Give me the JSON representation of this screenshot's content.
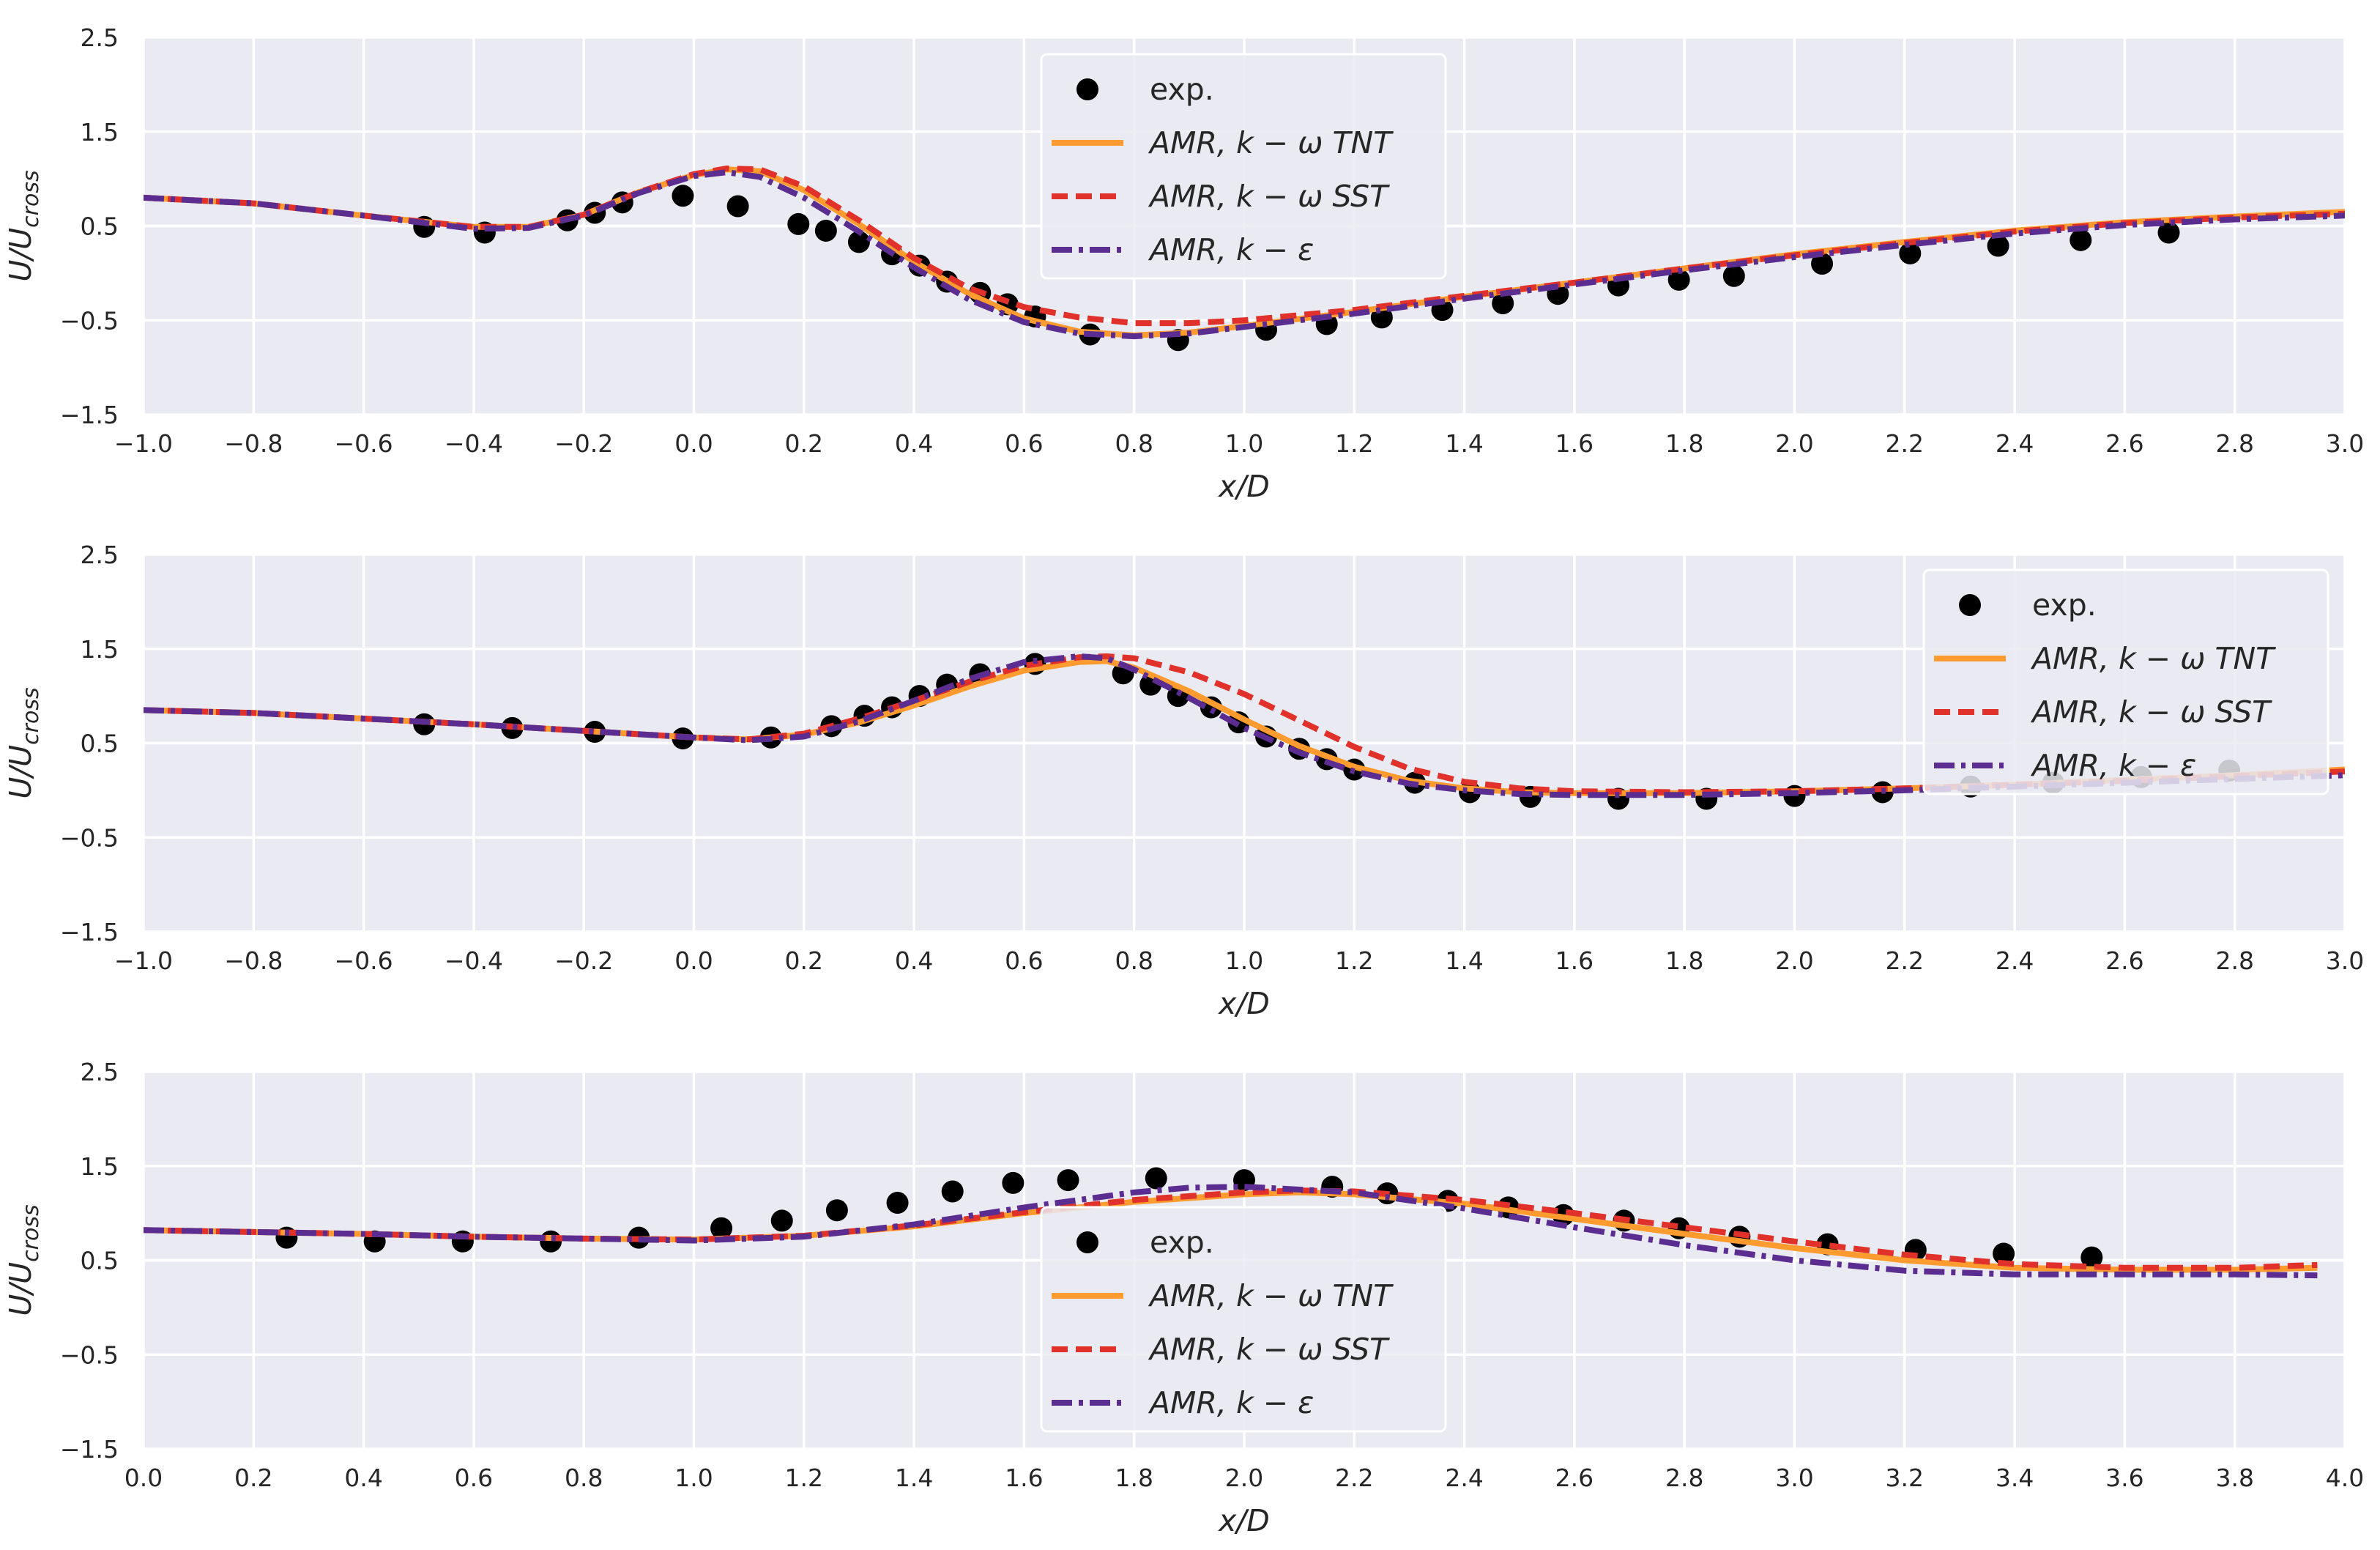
{
  "figure": {
    "background": "#ffffff",
    "panel_background": "#eaeaf2",
    "grid_color": "#ffffff",
    "text_color": "#262626"
  },
  "series_styles": {
    "exp": {
      "label": "exp.",
      "color": "#000000",
      "style": "marker"
    },
    "tnt": {
      "label": "AMR,  k − ω TNT",
      "color": "#ff9b2f",
      "style": "solid"
    },
    "sst": {
      "label": "AMR,  k − ω SST",
      "color": "#e0312b",
      "style": "dashed"
    },
    "ke": {
      "label": "AMR,  k − ε",
      "color": "#5b2d90",
      "style": "dashdot"
    }
  },
  "chart_data": [
    {
      "type": "line",
      "title": "",
      "xlabel": "x/D",
      "ylabel": "U/U_cross",
      "ylabel_main": "U/U",
      "ylabel_sub": "cross",
      "xlim": [
        -1.0,
        3.0
      ],
      "ylim": [
        -1.5,
        2.5
      ],
      "xticks": [
        -1.0,
        -0.8,
        -0.6,
        -0.4,
        -0.2,
        0.0,
        0.2,
        0.4,
        0.6,
        0.8,
        1.0,
        1.2,
        1.4,
        1.6,
        1.8,
        2.0,
        2.2,
        2.4,
        2.6,
        2.8,
        3.0
      ],
      "xtick_labels": [
        "−1.0",
        "−0.8",
        "−0.6",
        "−0.4",
        "−0.2",
        "0.0",
        "0.2",
        "0.4",
        "0.6",
        "0.8",
        "1.0",
        "1.2",
        "1.4",
        "1.6",
        "1.8",
        "2.0",
        "2.2",
        "2.4",
        "2.6",
        "2.8",
        "3.0"
      ],
      "yticks": [
        -1.5,
        -0.5,
        0.5,
        1.5,
        2.5
      ],
      "ytick_labels": [
        "−1.5",
        "−0.5",
        "0.5",
        "1.5",
        "2.5"
      ],
      "grid": true,
      "legend_position": "upper-center",
      "series": [
        {
          "key": "exp",
          "name": "exp.",
          "x": [
            -0.49,
            -0.38,
            -0.23,
            -0.18,
            -0.13,
            -0.02,
            0.08,
            0.19,
            0.24,
            0.3,
            0.36,
            0.41,
            0.46,
            0.52,
            0.57,
            0.62,
            0.72,
            0.88,
            1.04,
            1.15,
            1.25,
            1.36,
            1.47,
            1.57,
            1.68,
            1.79,
            1.89,
            2.05,
            2.21,
            2.37,
            2.52,
            2.68
          ],
          "y": [
            0.49,
            0.43,
            0.56,
            0.64,
            0.75,
            0.82,
            0.71,
            0.52,
            0.45,
            0.33,
            0.2,
            0.08,
            -0.09,
            -0.21,
            -0.33,
            -0.46,
            -0.65,
            -0.71,
            -0.6,
            -0.54,
            -0.47,
            -0.39,
            -0.32,
            -0.22,
            -0.13,
            -0.07,
            -0.03,
            0.1,
            0.21,
            0.29,
            0.35,
            0.43
          ]
        },
        {
          "key": "tnt",
          "name": "AMR,  k − ω TNT",
          "x": [
            -1.0,
            -0.8,
            -0.6,
            -0.4,
            -0.3,
            -0.2,
            -0.1,
            0.0,
            0.06,
            0.12,
            0.2,
            0.3,
            0.4,
            0.5,
            0.6,
            0.7,
            0.8,
            0.9,
            1.0,
            1.2,
            1.4,
            1.6,
            1.8,
            2.0,
            2.2,
            2.4,
            2.6,
            2.8,
            3.0
          ],
          "y": [
            0.8,
            0.74,
            0.61,
            0.49,
            0.49,
            0.62,
            0.86,
            1.04,
            1.1,
            1.08,
            0.88,
            0.52,
            0.12,
            -0.22,
            -0.48,
            -0.62,
            -0.66,
            -0.63,
            -0.56,
            -0.41,
            -0.25,
            -0.1,
            0.05,
            0.2,
            0.33,
            0.45,
            0.54,
            0.6,
            0.65
          ]
        },
        {
          "key": "sst",
          "name": "AMR,  k − ω SST",
          "x": [
            -1.0,
            -0.8,
            -0.6,
            -0.4,
            -0.3,
            -0.2,
            -0.1,
            0.0,
            0.06,
            0.12,
            0.2,
            0.3,
            0.4,
            0.5,
            0.6,
            0.7,
            0.8,
            0.9,
            1.0,
            1.2,
            1.4,
            1.6,
            1.8,
            2.0,
            2.2,
            2.4,
            2.6,
            2.8,
            3.0
          ],
          "y": [
            0.8,
            0.74,
            0.61,
            0.49,
            0.49,
            0.62,
            0.86,
            1.05,
            1.11,
            1.1,
            0.92,
            0.56,
            0.16,
            -0.16,
            -0.36,
            -0.47,
            -0.53,
            -0.53,
            -0.5,
            -0.39,
            -0.24,
            -0.1,
            0.05,
            0.19,
            0.32,
            0.44,
            0.53,
            0.59,
            0.63
          ]
        },
        {
          "key": "ke",
          "name": "AMR,  k − ε",
          "x": [
            -1.0,
            -0.8,
            -0.6,
            -0.4,
            -0.3,
            -0.2,
            -0.1,
            0.0,
            0.06,
            0.12,
            0.2,
            0.3,
            0.4,
            0.5,
            0.6,
            0.7,
            0.8,
            0.9,
            1.0,
            1.2,
            1.4,
            1.6,
            1.8,
            2.0,
            2.2,
            2.4,
            2.6,
            2.8,
            3.0
          ],
          "y": [
            0.8,
            0.74,
            0.61,
            0.47,
            0.48,
            0.61,
            0.85,
            1.03,
            1.07,
            1.02,
            0.8,
            0.44,
            0.06,
            -0.28,
            -0.52,
            -0.64,
            -0.67,
            -0.64,
            -0.57,
            -0.43,
            -0.27,
            -0.12,
            0.03,
            0.17,
            0.3,
            0.42,
            0.51,
            0.57,
            0.61
          ]
        }
      ]
    },
    {
      "type": "line",
      "title": "",
      "xlabel": "x/D",
      "ylabel": "U/U_cross",
      "ylabel_main": "U/U",
      "ylabel_sub": "cross",
      "xlim": [
        -1.0,
        3.0
      ],
      "ylim": [
        -1.5,
        2.5
      ],
      "xticks": [
        -1.0,
        -0.8,
        -0.6,
        -0.4,
        -0.2,
        0.0,
        0.2,
        0.4,
        0.6,
        0.8,
        1.0,
        1.2,
        1.4,
        1.6,
        1.8,
        2.0,
        2.2,
        2.4,
        2.6,
        2.8,
        3.0
      ],
      "xtick_labels": [
        "−1.0",
        "−0.8",
        "−0.6",
        "−0.4",
        "−0.2",
        "0.0",
        "0.2",
        "0.4",
        "0.6",
        "0.8",
        "1.0",
        "1.2",
        "1.4",
        "1.6",
        "1.8",
        "2.0",
        "2.2",
        "2.4",
        "2.6",
        "2.8",
        "3.0"
      ],
      "yticks": [
        -1.5,
        -0.5,
        0.5,
        1.5,
        2.5
      ],
      "ytick_labels": [
        "−1.5",
        "−0.5",
        "0.5",
        "1.5",
        "2.5"
      ],
      "grid": true,
      "legend_position": "upper-right",
      "series": [
        {
          "key": "exp",
          "name": "exp.",
          "x": [
            -0.49,
            -0.33,
            -0.18,
            -0.02,
            0.14,
            0.25,
            0.31,
            0.36,
            0.41,
            0.46,
            0.52,
            0.62,
            0.78,
            0.83,
            0.88,
            0.94,
            0.99,
            1.04,
            1.1,
            1.15,
            1.2,
            1.31,
            1.41,
            1.52,
            1.68,
            1.84,
            2.0,
            2.16,
            2.32,
            2.47,
            2.63,
            2.79
          ],
          "y": [
            0.7,
            0.66,
            0.62,
            0.55,
            0.56,
            0.68,
            0.79,
            0.88,
            1.0,
            1.12,
            1.23,
            1.34,
            1.24,
            1.12,
            1.0,
            0.88,
            0.72,
            0.57,
            0.44,
            0.33,
            0.22,
            0.08,
            -0.02,
            -0.07,
            -0.09,
            -0.09,
            -0.06,
            -0.02,
            0.04,
            0.08,
            0.14,
            0.21
          ]
        },
        {
          "key": "tnt",
          "name": "AMR,  k − ω TNT",
          "x": [
            -1.0,
            -0.8,
            -0.6,
            -0.4,
            -0.2,
            0.0,
            0.1,
            0.2,
            0.3,
            0.4,
            0.5,
            0.6,
            0.7,
            0.75,
            0.8,
            0.9,
            1.0,
            1.1,
            1.2,
            1.3,
            1.4,
            1.5,
            1.6,
            1.8,
            2.0,
            2.2,
            2.4,
            2.6,
            2.8,
            3.0
          ],
          "y": [
            0.85,
            0.82,
            0.76,
            0.7,
            0.63,
            0.56,
            0.54,
            0.59,
            0.72,
            0.9,
            1.1,
            1.27,
            1.36,
            1.37,
            1.3,
            1.05,
            0.75,
            0.47,
            0.25,
            0.1,
            0.02,
            -0.02,
            -0.03,
            -0.03,
            -0.01,
            0.02,
            0.06,
            0.11,
            0.16,
            0.22
          ]
        },
        {
          "key": "sst",
          "name": "AMR,  k − ω SST",
          "x": [
            -1.0,
            -0.8,
            -0.6,
            -0.4,
            -0.2,
            0.0,
            0.1,
            0.2,
            0.3,
            0.4,
            0.5,
            0.6,
            0.7,
            0.75,
            0.8,
            0.9,
            1.0,
            1.1,
            1.2,
            1.3,
            1.4,
            1.5,
            1.6,
            1.8,
            2.0,
            2.2,
            2.4,
            2.6,
            2.8,
            3.0
          ],
          "y": [
            0.85,
            0.82,
            0.76,
            0.7,
            0.63,
            0.56,
            0.54,
            0.6,
            0.76,
            0.95,
            1.15,
            1.32,
            1.41,
            1.42,
            1.4,
            1.25,
            1.02,
            0.74,
            0.46,
            0.23,
            0.09,
            0.02,
            -0.01,
            -0.02,
            -0.01,
            0.02,
            0.06,
            0.1,
            0.15,
            0.2
          ]
        },
        {
          "key": "ke",
          "name": "AMR,  k − ε",
          "x": [
            -1.0,
            -0.8,
            -0.6,
            -0.4,
            -0.2,
            0.0,
            0.1,
            0.2,
            0.3,
            0.4,
            0.5,
            0.6,
            0.7,
            0.75,
            0.8,
            0.9,
            1.0,
            1.1,
            1.2,
            1.3,
            1.4,
            1.5,
            1.6,
            1.8,
            2.0,
            2.2,
            2.4,
            2.6,
            2.8,
            3.0
          ],
          "y": [
            0.85,
            0.82,
            0.76,
            0.7,
            0.63,
            0.56,
            0.53,
            0.57,
            0.73,
            0.95,
            1.18,
            1.36,
            1.42,
            1.4,
            1.28,
            0.98,
            0.66,
            0.4,
            0.2,
            0.07,
            0.0,
            -0.04,
            -0.05,
            -0.05,
            -0.03,
            0.0,
            0.04,
            0.08,
            0.12,
            0.16
          ]
        }
      ]
    },
    {
      "type": "line",
      "title": "",
      "xlabel": "x/D",
      "ylabel": "U/U_cross",
      "ylabel_main": "U/U",
      "ylabel_sub": "cross",
      "xlim": [
        0.0,
        4.0
      ],
      "ylim": [
        -1.5,
        2.5
      ],
      "xticks": [
        0.0,
        0.2,
        0.4,
        0.6,
        0.8,
        1.0,
        1.2,
        1.4,
        1.6,
        1.8,
        2.0,
        2.2,
        2.4,
        2.6,
        2.8,
        3.0,
        3.2,
        3.4,
        3.6,
        3.8,
        4.0
      ],
      "xtick_labels": [
        "0.0",
        "0.2",
        "0.4",
        "0.6",
        "0.8",
        "1.0",
        "1.2",
        "1.4",
        "1.6",
        "1.8",
        "2.0",
        "2.2",
        "2.4",
        "2.6",
        "2.8",
        "3.0",
        "3.2",
        "3.4",
        "3.6",
        "3.8",
        "4.0"
      ],
      "yticks": [
        -1.5,
        -0.5,
        0.5,
        1.5,
        2.5
      ],
      "ytick_labels": [
        "−1.5",
        "−0.5",
        "0.5",
        "1.5",
        "2.5"
      ],
      "grid": true,
      "legend_position": "lower-center",
      "series": [
        {
          "key": "exp",
          "name": "exp.",
          "x": [
            0.26,
            0.42,
            0.58,
            0.74,
            0.9,
            1.05,
            1.16,
            1.26,
            1.37,
            1.47,
            1.58,
            1.68,
            1.84,
            2.0,
            2.16,
            2.26,
            2.37,
            2.48,
            2.58,
            2.69,
            2.79,
            2.9,
            3.06,
            3.22,
            3.38,
            3.54
          ],
          "y": [
            0.74,
            0.7,
            0.7,
            0.7,
            0.74,
            0.84,
            0.92,
            1.03,
            1.11,
            1.23,
            1.32,
            1.35,
            1.37,
            1.35,
            1.28,
            1.21,
            1.13,
            1.06,
            0.98,
            0.92,
            0.84,
            0.75,
            0.67,
            0.61,
            0.57,
            0.53
          ]
        },
        {
          "key": "tnt",
          "name": "AMR,  k − ω TNT",
          "x": [
            0.0,
            0.2,
            0.4,
            0.6,
            0.8,
            1.0,
            1.2,
            1.4,
            1.6,
            1.8,
            2.0,
            2.1,
            2.2,
            2.4,
            2.6,
            2.8,
            3.0,
            3.2,
            3.4,
            3.6,
            3.8,
            3.95
          ],
          "y": [
            0.82,
            0.8,
            0.78,
            0.75,
            0.73,
            0.72,
            0.76,
            0.86,
            1.0,
            1.12,
            1.2,
            1.22,
            1.2,
            1.1,
            0.94,
            0.78,
            0.63,
            0.5,
            0.42,
            0.4,
            0.4,
            0.42
          ]
        },
        {
          "key": "sst",
          "name": "AMR,  k − ω SST",
          "x": [
            0.0,
            0.2,
            0.4,
            0.6,
            0.8,
            1.0,
            1.2,
            1.4,
            1.6,
            1.8,
            2.0,
            2.1,
            2.2,
            2.4,
            2.6,
            2.8,
            3.0,
            3.2,
            3.4,
            3.6,
            3.8,
            3.95
          ],
          "y": [
            0.82,
            0.8,
            0.78,
            0.75,
            0.73,
            0.72,
            0.76,
            0.87,
            1.01,
            1.14,
            1.22,
            1.24,
            1.23,
            1.14,
            1.0,
            0.85,
            0.7,
            0.56,
            0.46,
            0.42,
            0.42,
            0.45
          ]
        },
        {
          "key": "ke",
          "name": "AMR,  k − ε",
          "x": [
            0.0,
            0.2,
            0.4,
            0.6,
            0.8,
            1.0,
            1.2,
            1.4,
            1.6,
            1.8,
            1.9,
            2.0,
            2.2,
            2.4,
            2.6,
            2.8,
            3.0,
            3.2,
            3.4,
            3.6,
            3.8,
            3.95
          ],
          "y": [
            0.82,
            0.8,
            0.78,
            0.75,
            0.73,
            0.71,
            0.75,
            0.88,
            1.06,
            1.22,
            1.27,
            1.28,
            1.22,
            1.05,
            0.85,
            0.66,
            0.5,
            0.39,
            0.35,
            0.35,
            0.35,
            0.34
          ]
        }
      ]
    }
  ]
}
